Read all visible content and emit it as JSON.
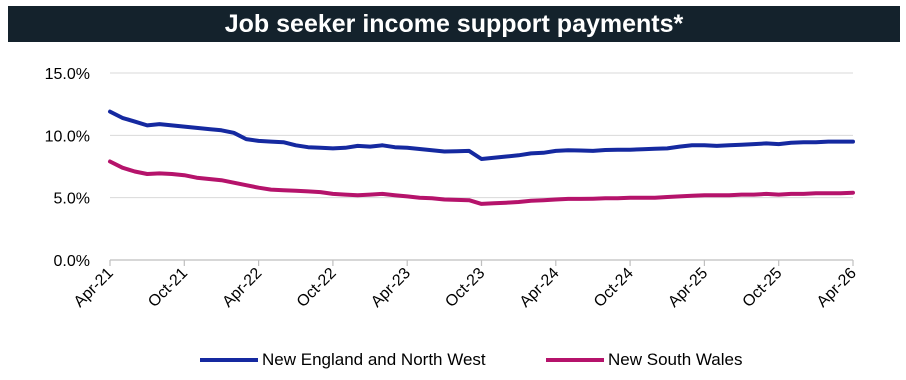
{
  "chart_data": {
    "type": "line",
    "title": "Job seeker income support payments*",
    "xlabel": "",
    "ylabel": "",
    "ylim": [
      0,
      15
    ],
    "y_ticks": [
      "0.0%",
      "5.0%",
      "10.0%",
      "15.0%"
    ],
    "y_tick_values": [
      0,
      5,
      10,
      15
    ],
    "x_ticks": [
      "Apr-21",
      "Oct-21",
      "Apr-22",
      "Oct-22",
      "Apr-23",
      "Oct-23",
      "Apr-24",
      "Oct-24",
      "Apr-25",
      "Oct-25",
      "Apr-26"
    ],
    "grid": "horizontal",
    "legend_position": "bottom",
    "x": [
      "Apr-21",
      "May-21",
      "Jun-21",
      "Jul-21",
      "Aug-21",
      "Sep-21",
      "Oct-21",
      "Nov-21",
      "Dec-21",
      "Jan-22",
      "Feb-22",
      "Mar-22",
      "Apr-22",
      "May-22",
      "Jun-22",
      "Jul-22",
      "Aug-22",
      "Sep-22",
      "Oct-22",
      "Nov-22",
      "Dec-22",
      "Jan-23",
      "Feb-23",
      "Mar-23",
      "Apr-23",
      "May-23",
      "Jun-23",
      "Jul-23",
      "Aug-23",
      "Sep-23",
      "Oct-23",
      "Nov-23",
      "Dec-23",
      "Jan-24",
      "Feb-24",
      "Mar-24",
      "Apr-24",
      "May-24",
      "Jun-24",
      "Jul-24",
      "Aug-24",
      "Sep-24",
      "Oct-24",
      "Nov-24",
      "Dec-24",
      "Jan-25",
      "Feb-25",
      "Mar-25",
      "Apr-25",
      "May-25",
      "Jun-25",
      "Jul-25",
      "Aug-25",
      "Sep-25",
      "Oct-25",
      "Nov-25",
      "Dec-25",
      "Jan-26",
      "Feb-26",
      "Mar-26",
      "Apr-26"
    ],
    "series": [
      {
        "name": "New England and North West",
        "color": "#1529a0",
        "values": [
          11.9,
          11.4,
          11.1,
          10.8,
          10.9,
          10.8,
          10.7,
          10.6,
          10.5,
          10.4,
          10.2,
          9.7,
          9.55,
          9.5,
          9.45,
          9.2,
          9.05,
          9.0,
          8.95,
          9.0,
          9.15,
          9.1,
          9.2,
          9.05,
          9.0,
          8.9,
          8.8,
          8.7,
          8.72,
          8.75,
          8.1,
          8.2,
          8.3,
          8.4,
          8.55,
          8.6,
          8.75,
          8.8,
          8.78,
          8.75,
          8.82,
          8.85,
          8.85,
          8.88,
          8.92,
          8.95,
          9.1,
          9.2,
          9.2,
          9.15,
          9.2,
          9.25,
          9.3,
          9.35,
          9.3,
          9.4,
          9.45,
          9.45,
          9.5,
          9.5,
          9.5
        ]
      },
      {
        "name": "New South Wales",
        "color": "#b5136b",
        "values": [
          7.9,
          7.4,
          7.1,
          6.9,
          6.95,
          6.9,
          6.8,
          6.6,
          6.5,
          6.4,
          6.2,
          6.0,
          5.8,
          5.65,
          5.6,
          5.55,
          5.5,
          5.45,
          5.3,
          5.25,
          5.2,
          5.25,
          5.3,
          5.2,
          5.1,
          5.0,
          4.95,
          4.85,
          4.82,
          4.8,
          4.5,
          4.55,
          4.6,
          4.65,
          4.75,
          4.8,
          4.85,
          4.9,
          4.9,
          4.92,
          4.95,
          4.95,
          5.0,
          5.0,
          5.0,
          5.05,
          5.1,
          5.15,
          5.2,
          5.2,
          5.2,
          5.25,
          5.25,
          5.3,
          5.25,
          5.3,
          5.3,
          5.35,
          5.35,
          5.35,
          5.4
        ]
      }
    ]
  }
}
